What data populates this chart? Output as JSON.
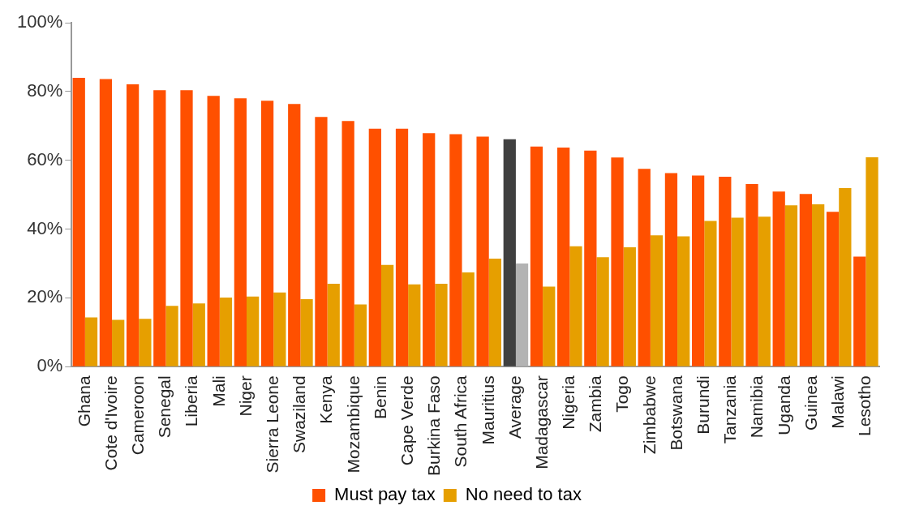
{
  "chart_data": {
    "type": "bar",
    "categories": [
      "Ghana",
      "Cote d'Ivoire",
      "Cameroon",
      "Senegal",
      "Liberia",
      "Mali",
      "Niger",
      "Sierra Leone",
      "Swaziland",
      "Kenya",
      "Mozambique",
      "Benin",
      "Cape Verde",
      "Burkina Faso",
      "South Africa",
      "Mauritius",
      "Average",
      "Madagascar",
      "Nigeria",
      "Zambia",
      "Togo",
      "Zimbabwe",
      "Botswana",
      "Burundi",
      "Tanzania",
      "Namibia",
      "Uganda",
      "Guinea",
      "Malawi",
      "Lesotho"
    ],
    "series": [
      {
        "name": "Must pay tax",
        "color": "#ff5000",
        "colors": [
          "#ff5000",
          "#ff5000",
          "#ff5000",
          "#ff5000",
          "#ff5000",
          "#ff5000",
          "#ff5000",
          "#ff5000",
          "#ff5000",
          "#ff5000",
          "#ff5000",
          "#ff5000",
          "#ff5000",
          "#ff5000",
          "#ff5000",
          "#ff5000",
          "#404040",
          "#ff5000",
          "#ff5000",
          "#ff5000",
          "#ff5000",
          "#ff5000",
          "#ff5000",
          "#ff5000",
          "#ff5000",
          "#ff5000",
          "#ff5000",
          "#ff5000",
          "#ff5000",
          "#ff5000"
        ],
        "values": [
          84.0,
          83.6,
          82.1,
          80.4,
          80.4,
          78.7,
          78.0,
          77.3,
          76.4,
          72.6,
          71.4,
          69.2,
          69.2,
          67.9,
          67.6,
          66.9,
          66.1,
          64.0,
          63.7,
          62.8,
          60.8,
          57.5,
          56.3,
          55.6,
          55.2,
          53.1,
          50.9,
          50.2,
          45.0,
          32.0
        ]
      },
      {
        "name": "No need to tax",
        "color": "#e69f00",
        "colors": [
          "#e69f00",
          "#e69f00",
          "#e69f00",
          "#e69f00",
          "#e69f00",
          "#e69f00",
          "#e69f00",
          "#e69f00",
          "#e69f00",
          "#e69f00",
          "#e69f00",
          "#e69f00",
          "#e69f00",
          "#e69f00",
          "#e69f00",
          "#e69f00",
          "#b3b3b3",
          "#e69f00",
          "#e69f00",
          "#e69f00",
          "#e69f00",
          "#e69f00",
          "#e69f00",
          "#e69f00",
          "#e69f00",
          "#e69f00",
          "#e69f00",
          "#e69f00",
          "#e69f00",
          "#e69f00"
        ],
        "values": [
          14.3,
          13.6,
          13.9,
          17.7,
          18.4,
          20.1,
          20.4,
          21.6,
          19.6,
          24.1,
          18.1,
          29.6,
          23.9,
          24.1,
          27.4,
          31.4,
          30.0,
          23.3,
          35.0,
          31.8,
          34.7,
          38.2,
          37.9,
          42.4,
          43.3,
          43.6,
          46.9,
          47.2,
          51.9,
          60.9
        ]
      }
    ],
    "ylim": [
      0,
      100
    ],
    "yticks": [
      {
        "value": 0,
        "label": "0%"
      },
      {
        "value": 20,
        "label": "20%"
      },
      {
        "value": 40,
        "label": "40%"
      },
      {
        "value": 60,
        "label": "60%"
      },
      {
        "value": 80,
        "label": "80%"
      },
      {
        "value": 100,
        "label": "100%"
      }
    ],
    "grid": false,
    "legend": "bottom"
  }
}
